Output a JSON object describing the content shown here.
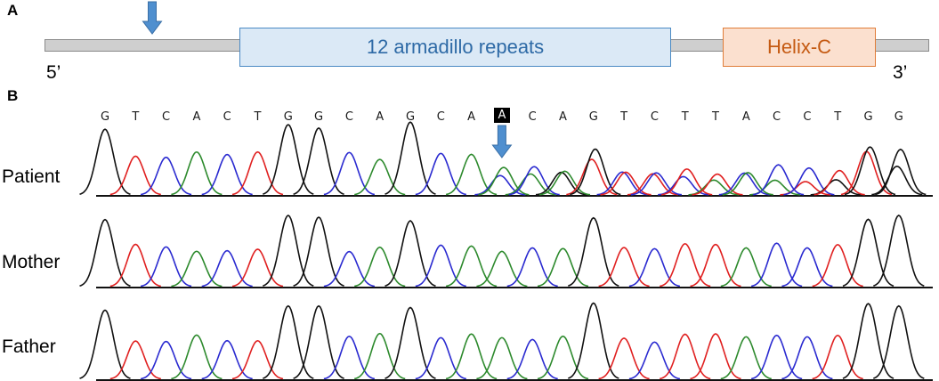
{
  "panels": {
    "a_label": "A",
    "b_label": "B"
  },
  "gene_diagram": {
    "domains": [
      {
        "name": "12 armadillo repeats",
        "color": "#4b8ac4"
      },
      {
        "name": "Helix-C",
        "color": "#e07c38"
      }
    ],
    "five_prime": "5’",
    "three_prime": "3’",
    "arrow_color": "#4f8fcf"
  },
  "sequence": {
    "bases": [
      "G",
      "T",
      "C",
      "A",
      "C",
      "T",
      "G",
      "G",
      "C",
      "A",
      "G",
      "C",
      "A",
      "A",
      "C",
      "A",
      "G",
      "T",
      "C",
      "T",
      "T",
      "A",
      "C",
      "C",
      "T",
      "G",
      "G"
    ],
    "highlighted_index": 13
  },
  "base_colors": {
    "A": "#2d8a2d",
    "C": "#2a2ad0",
    "G": "#111111",
    "T": "#e02020"
  },
  "samples": [
    {
      "label": "Patient",
      "heterozygous_from": 13
    },
    {
      "label": "Mother",
      "heterozygous_from": null
    },
    {
      "label": "Father",
      "heterozygous_from": null
    }
  ]
}
